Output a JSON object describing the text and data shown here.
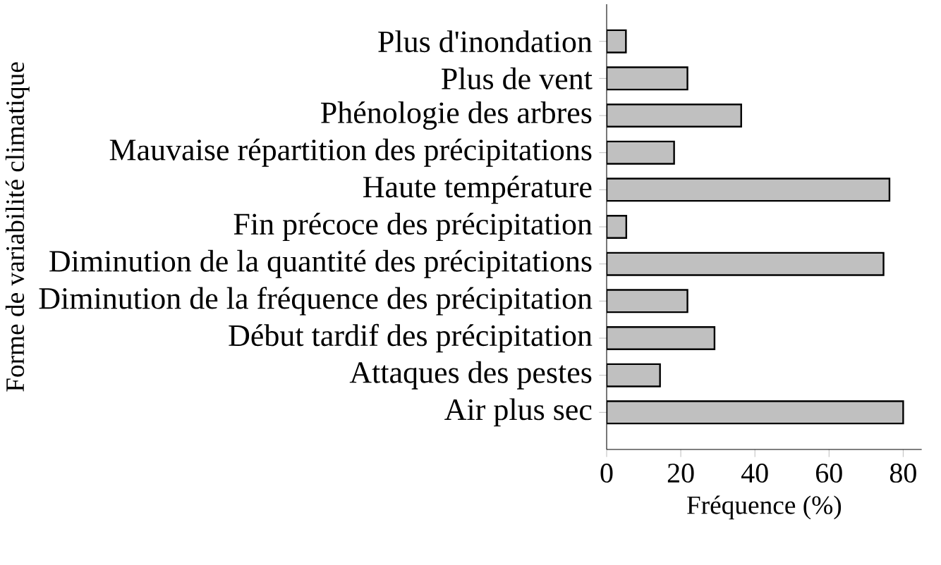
{
  "chart_data": {
    "type": "bar",
    "orientation": "horizontal",
    "xlabel": "Fréquence (%)",
    "ylabel": "Forme de variabilité climatique",
    "categories": [
      "Plus d'inondation",
      "Plus de vent",
      "Phénologie des arbres",
      "Mauvaise répartition des précipitations",
      "Haute température",
      "Fin précoce des précipitation",
      "Diminution de la quantité des précipitations",
      "Diminution de la fréquence des précipitation",
      "Début tardif des précipitation",
      "Attaques des pestes",
      "Air plus sec"
    ],
    "values": [
      5.2,
      21.8,
      36.3,
      18.2,
      76.3,
      5.3,
      74.7,
      21.8,
      29.1,
      14.4,
      80
    ],
    "color": "#c0c0c0",
    "xlim": [
      0,
      85
    ],
    "xticks": [
      0,
      20,
      40,
      60,
      80
    ],
    "grid": false
  }
}
